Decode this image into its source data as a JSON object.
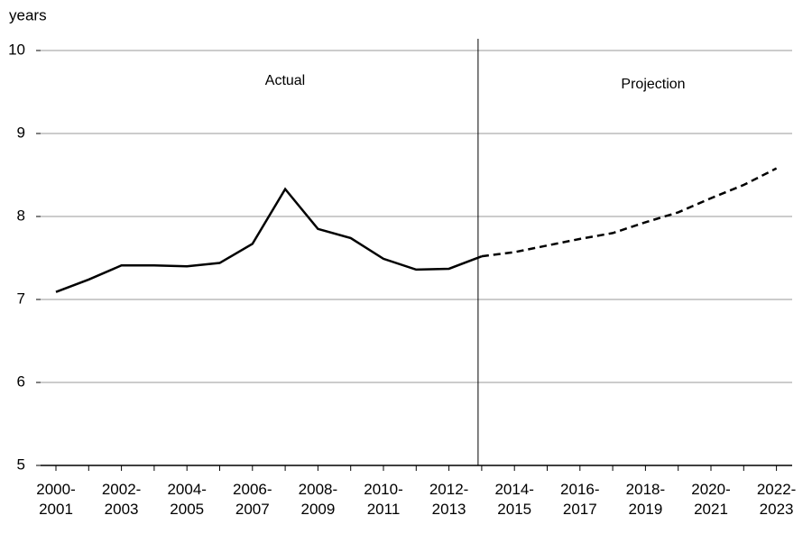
{
  "chart_data": {
    "type": "line",
    "y_label": "years",
    "categories": [
      "2000-2001",
      null,
      "2002-2003",
      null,
      "2004-2005",
      null,
      "2006-2007",
      null,
      "2008-2009",
      null,
      "2010-2011",
      null,
      "2012-2013",
      null,
      "2014-2015",
      null,
      "2016-2017",
      null,
      "2018-2019",
      null,
      "2020-2021",
      null,
      "2022-2023"
    ],
    "series": [
      {
        "name": "Actual",
        "color": "#000000",
        "dashed": false,
        "values": [
          7.09,
          7.24,
          7.41,
          7.41,
          7.4,
          7.44,
          7.67,
          8.33,
          7.85,
          7.74,
          7.49,
          7.36,
          7.37,
          7.52,
          null,
          null,
          null,
          null,
          null,
          null,
          null,
          null,
          null
        ]
      },
      {
        "name": "Projection",
        "color": "#000000",
        "dashed": true,
        "values": [
          null,
          null,
          null,
          null,
          null,
          null,
          null,
          null,
          null,
          null,
          null,
          null,
          null,
          7.52,
          7.57,
          7.65,
          7.73,
          7.8,
          7.93,
          8.05,
          8.22,
          8.38,
          8.58
        ]
      }
    ],
    "ylim": [
      5,
      10
    ],
    "yticks": [
      5,
      6,
      7,
      8,
      9,
      10
    ],
    "grid": true
  }
}
